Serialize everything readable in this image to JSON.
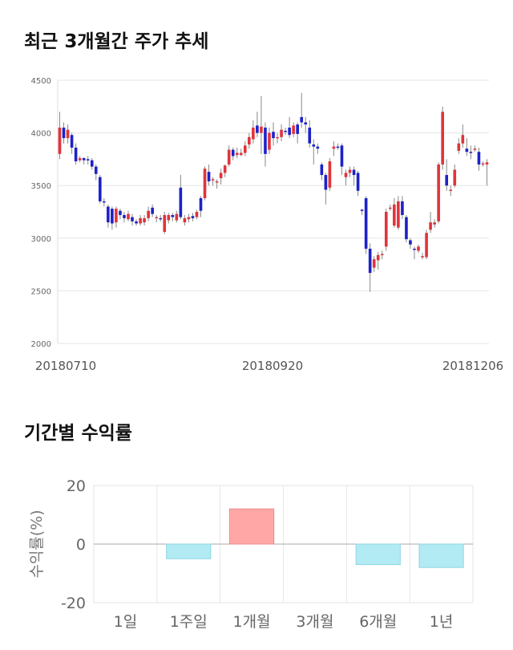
{
  "section1": {
    "title": "최근 3개월간 주가 추세"
  },
  "section2": {
    "title": "기간별 수익률"
  },
  "colors": {
    "up": "#e0343a",
    "down": "#1c22c8",
    "positive_bar": "#ffa7a7",
    "negative_bar": "#b2ebf4",
    "grid": "#e6e6e6"
  },
  "chart_data": [
    {
      "type": "candlestick",
      "title": "최근 3개월간 주가 추세",
      "ylim": [
        2000,
        4500
      ],
      "y_ticks": [
        "4500",
        "4000",
        "3500",
        "3000",
        "2500",
        "2000"
      ],
      "x_ticks": [
        "20180710",
        "20180920",
        "20181206"
      ],
      "grid": true,
      "candles": [
        [
          3800,
          4050,
          4200,
          3750
        ],
        [
          4050,
          3950,
          4100,
          3900
        ],
        [
          3950,
          4030,
          4080,
          3900
        ],
        [
          3980,
          3860,
          4000,
          3800
        ],
        [
          3860,
          3730,
          3900,
          3700
        ],
        [
          3740,
          3760,
          3780,
          3720
        ],
        [
          3760,
          3740,
          3770,
          3700
        ],
        [
          3750,
          3740,
          3780,
          3700
        ],
        [
          3740,
          3680,
          3760,
          3650
        ],
        [
          3680,
          3610,
          3700,
          3550
        ],
        [
          3580,
          3350,
          3600,
          3330
        ],
        [
          3350,
          3340,
          3380,
          3300
        ],
        [
          3300,
          3150,
          3320,
          3100
        ],
        [
          3280,
          3140,
          3300,
          3080
        ],
        [
          3150,
          3280,
          3300,
          3100
        ],
        [
          3260,
          3220,
          3280,
          3180
        ],
        [
          3220,
          3190,
          3250,
          3150
        ],
        [
          3180,
          3230,
          3260,
          3160
        ],
        [
          3200,
          3160,
          3230,
          3120
        ],
        [
          3160,
          3140,
          3180,
          3120
        ],
        [
          3140,
          3190,
          3220,
          3120
        ],
        [
          3150,
          3190,
          3220,
          3120
        ],
        [
          3190,
          3260,
          3300,
          3160
        ],
        [
          3290,
          3230,
          3320,
          3200
        ],
        [
          3200,
          3200,
          3220,
          3150
        ],
        [
          3190,
          3180,
          3220,
          3160
        ],
        [
          3060,
          3220,
          3250,
          3040
        ],
        [
          3170,
          3220,
          3240,
          3140
        ],
        [
          3220,
          3200,
          3240,
          3160
        ],
        [
          3170,
          3230,
          3260,
          3150
        ],
        [
          3480,
          3200,
          3600,
          3180
        ],
        [
          3150,
          3190,
          3220,
          3120
        ],
        [
          3180,
          3200,
          3230,
          3150
        ],
        [
          3210,
          3190,
          3240,
          3160
        ],
        [
          3200,
          3250,
          3270,
          3180
        ],
        [
          3380,
          3260,
          3400,
          3200
        ],
        [
          3380,
          3660,
          3680,
          3360
        ],
        [
          3630,
          3540,
          3700,
          3500
        ],
        [
          3550,
          3560,
          3580,
          3500
        ],
        [
          3540,
          3540,
          3560,
          3470
        ],
        [
          3570,
          3620,
          3660,
          3510
        ],
        [
          3620,
          3690,
          3700,
          3580
        ],
        [
          3700,
          3840,
          3880,
          3680
        ],
        [
          3840,
          3780,
          3860,
          3740
        ],
        [
          3790,
          3810,
          3860,
          3760
        ],
        [
          3790,
          3810,
          3850,
          3780
        ],
        [
          3810,
          3880,
          3920,
          3780
        ],
        [
          3890,
          3960,
          4000,
          3850
        ],
        [
          3940,
          4050,
          4120,
          3900
        ],
        [
          4070,
          4000,
          4200,
          3960
        ],
        [
          4000,
          4060,
          4350,
          3800
        ],
        [
          4050,
          3800,
          4100,
          3680
        ],
        [
          3840,
          4000,
          4050,
          3800
        ],
        [
          4010,
          3950,
          4100,
          3880
        ],
        [
          3950,
          3960,
          4000,
          3900
        ],
        [
          3960,
          4030,
          4080,
          3920
        ],
        [
          4020,
          4010,
          4050,
          3980
        ],
        [
          4050,
          3980,
          4150,
          3950
        ],
        [
          3990,
          4070,
          4100,
          3960
        ],
        [
          4080,
          3990,
          4100,
          3900
        ],
        [
          4150,
          4100,
          4380,
          4050
        ],
        [
          4100,
          4080,
          4150,
          4000
        ],
        [
          4050,
          3900,
          4120,
          3860
        ],
        [
          3890,
          3870,
          3940,
          3700
        ],
        [
          3870,
          3850,
          3900,
          3800
        ],
        [
          3700,
          3600,
          3720,
          3550
        ],
        [
          3600,
          3460,
          3620,
          3320
        ],
        [
          3480,
          3730,
          3760,
          3450
        ],
        [
          3850,
          3870,
          3920,
          3780
        ],
        [
          3870,
          3860,
          3900,
          3840
        ],
        [
          3880,
          3680,
          3900,
          3600
        ],
        [
          3580,
          3620,
          3650,
          3500
        ],
        [
          3620,
          3650,
          3680,
          3580
        ],
        [
          3650,
          3600,
          3680,
          3500
        ],
        [
          3620,
          3450,
          3640,
          3400
        ],
        [
          3270,
          3260,
          3280,
          3220
        ],
        [
          3380,
          2900,
          3400,
          2850
        ],
        [
          2900,
          2670,
          2950,
          2490
        ],
        [
          2720,
          2800,
          2830,
          2680
        ],
        [
          2790,
          2840,
          2870,
          2700
        ],
        [
          2850,
          2850,
          2880,
          2800
        ],
        [
          2920,
          3250,
          3280,
          2880
        ],
        [
          3290,
          3290,
          3320,
          3260
        ],
        [
          3120,
          3320,
          3380,
          3100
        ],
        [
          3100,
          3350,
          3400,
          3080
        ],
        [
          3350,
          3220,
          3400,
          3180
        ],
        [
          3200,
          2990,
          3220,
          2960
        ],
        [
          2980,
          2940,
          3000,
          2900
        ],
        [
          2900,
          2890,
          2920,
          2800
        ],
        [
          2880,
          2920,
          2940,
          2860
        ],
        [
          2830,
          2830,
          2860,
          2800
        ],
        [
          2820,
          3050,
          3080,
          2800
        ],
        [
          3080,
          3150,
          3250,
          3050
        ],
        [
          3130,
          3150,
          3180,
          3100
        ],
        [
          3160,
          3700,
          3720,
          3140
        ],
        [
          3700,
          4200,
          4250,
          3650
        ],
        [
          3600,
          3500,
          3750,
          3450
        ],
        [
          3450,
          3460,
          3500,
          3400
        ],
        [
          3500,
          3650,
          3700,
          3480
        ],
        [
          3830,
          3900,
          3950,
          3800
        ],
        [
          3900,
          3980,
          4080,
          3860
        ],
        [
          3850,
          3820,
          3950,
          3780
        ],
        [
          3820,
          3810,
          3880,
          3750
        ],
        [
          3850,
          3850,
          3880,
          3820
        ],
        [
          3820,
          3700,
          3860,
          3640
        ],
        [
          3700,
          3710,
          3730,
          3680
        ],
        [
          3700,
          3720,
          3750,
          3500
        ]
      ]
    },
    {
      "type": "bar",
      "title": "기간별 수익률",
      "ylabel": "수익률(%)",
      "ylim": [
        -20,
        20
      ],
      "y_ticks": [
        "20",
        "0",
        "-20"
      ],
      "categories": [
        "1일",
        "1주일",
        "1개월",
        "3개월",
        "6개월",
        "1년"
      ],
      "values": [
        0,
        -5,
        12,
        0,
        -7,
        -8
      ],
      "grid": true
    }
  ]
}
